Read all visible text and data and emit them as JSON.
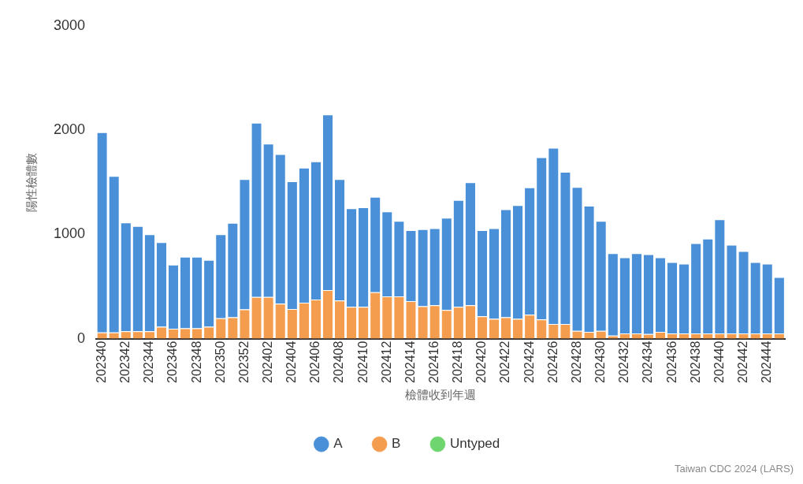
{
  "chart_data": {
    "type": "bar",
    "stacked": true,
    "ylabel": "陽性檢體數",
    "xlabel": "檢體收到年週",
    "annotations": [
      "Taiwan CDC 2024 (LARS)"
    ],
    "categories": [
      "202340",
      null,
      "202342",
      null,
      "202344",
      null,
      "202346",
      null,
      "202348",
      null,
      "202350",
      null,
      "202352",
      null,
      "202402",
      null,
      "202404",
      null,
      "202406",
      null,
      "202408",
      null,
      "202410",
      null,
      "202412",
      null,
      "202414",
      null,
      "202416",
      null,
      "202418",
      null,
      "202420",
      null,
      "202422",
      null,
      "202424",
      null,
      "202426",
      null,
      "202428",
      null,
      "202430",
      null,
      "202432",
      null,
      "202434",
      null,
      "202436",
      null,
      "202438",
      null,
      "202440",
      null,
      "202442",
      null,
      "202444",
      null
    ],
    "series": [
      {
        "name": "Untyped",
        "color": "#6fd66f",
        "values": [
          0,
          0,
          0,
          0,
          0,
          0,
          0,
          0,
          0,
          0,
          0,
          0,
          0,
          0,
          0,
          0,
          0,
          0,
          0,
          0,
          0,
          0,
          0,
          0,
          0,
          0,
          0,
          0,
          0,
          0,
          0,
          0,
          0,
          0,
          0,
          0,
          0,
          0,
          0,
          0,
          0,
          0,
          0,
          0,
          0,
          0,
          0,
          0,
          0,
          0,
          0,
          0,
          0,
          0,
          0,
          0,
          0,
          0
        ]
      },
      {
        "name": "B",
        "color": "#f59d4e",
        "values": [
          60,
          60,
          70,
          70,
          70,
          115,
          95,
          100,
          100,
          115,
          195,
          205,
          280,
          400,
          400,
          335,
          285,
          345,
          375,
          465,
          365,
          305,
          305,
          445,
          405,
          405,
          360,
          310,
          320,
          275,
          305,
          320,
          215,
          190,
          205,
          190,
          230,
          185,
          140,
          140,
          75,
          65,
          75,
          30,
          50,
          50,
          45,
          65,
          50,
          50,
          50,
          50,
          50,
          50,
          50,
          50,
          50,
          50
        ]
      },
      {
        "name": "A",
        "color": "#4a90d8",
        "values": [
          1920,
          1500,
          1045,
          1010,
          930,
          810,
          615,
          685,
          685,
          640,
          805,
          905,
          1250,
          1670,
          1470,
          1435,
          1225,
          1295,
          1325,
          1685,
          1165,
          945,
          955,
          915,
          815,
          725,
          680,
          740,
          740,
          885,
          1025,
          1180,
          825,
          870,
          1035,
          1090,
          1220,
          1555,
          1690,
          1460,
          1380,
          1210,
          1055,
          790,
          730,
          770,
          765,
          715,
          685,
          670,
          865,
          910,
          1095,
          850,
          790,
          685,
          670,
          540
        ]
      }
    ],
    "ylim": [
      0,
      3000
    ],
    "yticks": [
      0,
      1000,
      2000,
      3000
    ],
    "grid": false,
    "legend": "bottom"
  }
}
